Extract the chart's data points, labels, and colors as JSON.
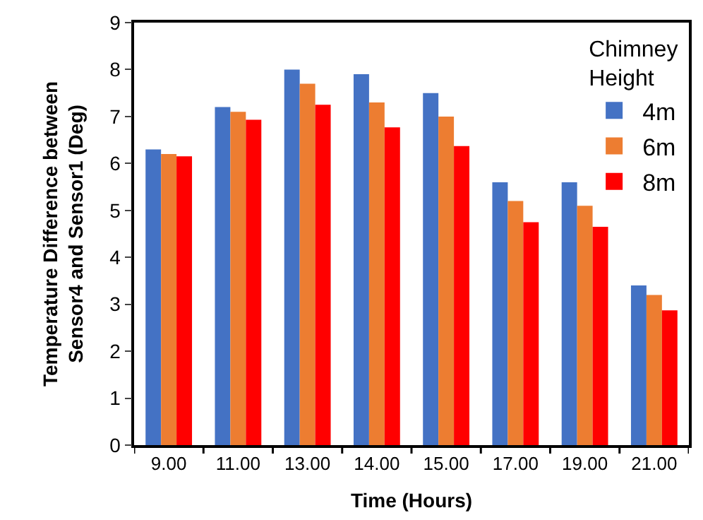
{
  "chart_data": {
    "type": "bar",
    "xlabel": "Time (Hours)",
    "ylabel": "Temperature Difference between\nSensor4 and Sensor1 (Deg)",
    "legend_title": "Chimney\nHeight",
    "categories": [
      "9.00",
      "11.00",
      "13.00",
      "14.00",
      "15.00",
      "17.00",
      "19.00",
      "21.00"
    ],
    "series": [
      {
        "name": "4m",
        "color": "#4472c4",
        "values": [
          6.3,
          7.2,
          8.0,
          7.9,
          7.5,
          5.6,
          5.6,
          3.4
        ]
      },
      {
        "name": "6m",
        "color": "#ed7d31",
        "values": [
          6.2,
          7.1,
          7.7,
          7.3,
          7.0,
          5.2,
          5.1,
          3.2
        ]
      },
      {
        "name": "8m",
        "color": "#ff0000",
        "values": [
          6.15,
          6.93,
          7.25,
          6.77,
          6.37,
          4.75,
          4.65,
          2.87
        ]
      }
    ],
    "ylim": [
      0,
      9
    ],
    "yticks": [
      0,
      1,
      2,
      3,
      4,
      5,
      6,
      7,
      8,
      9
    ],
    "legend": "top right"
  }
}
